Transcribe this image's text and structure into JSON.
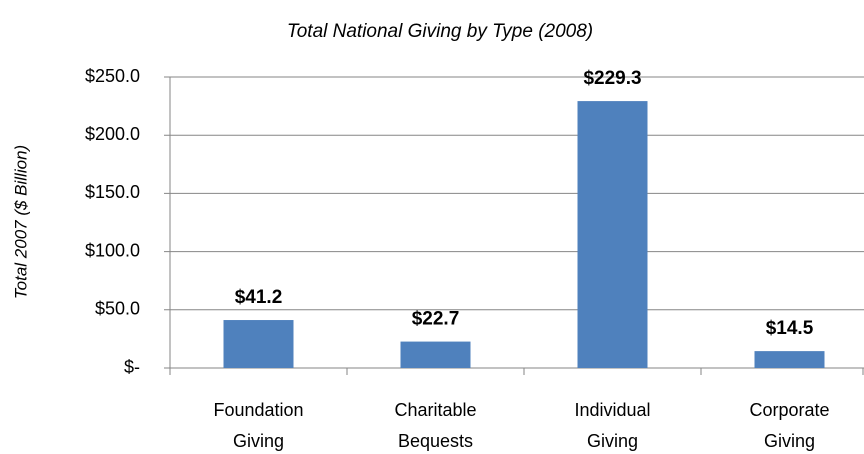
{
  "chart_data": {
    "type": "bar",
    "title": "Total National Giving by Type (2008)",
    "y_label": "Total 2007 ($ Billion)",
    "categories": [
      [
        "Foundation",
        "Giving"
      ],
      [
        "Charitable",
        "Bequests"
      ],
      [
        "Individual",
        "Giving"
      ],
      [
        "Corporate",
        "Giving"
      ]
    ],
    "values": [
      41.2,
      22.7,
      229.3,
      14.5
    ],
    "value_labels": [
      "$41.2",
      "$22.7",
      "$229.3",
      "$14.5"
    ],
    "color": "#4f81bd",
    "ylim": [
      0,
      250
    ],
    "yticks": [
      {
        "value": 0,
        "label": "$-"
      },
      {
        "value": 50,
        "label": "$50.0"
      },
      {
        "value": 100,
        "label": "$100.0"
      },
      {
        "value": 150,
        "label": "$150.0"
      },
      {
        "value": 200,
        "label": "$200.0"
      },
      {
        "value": 250,
        "label": "$250.0"
      }
    ],
    "grid": true
  }
}
